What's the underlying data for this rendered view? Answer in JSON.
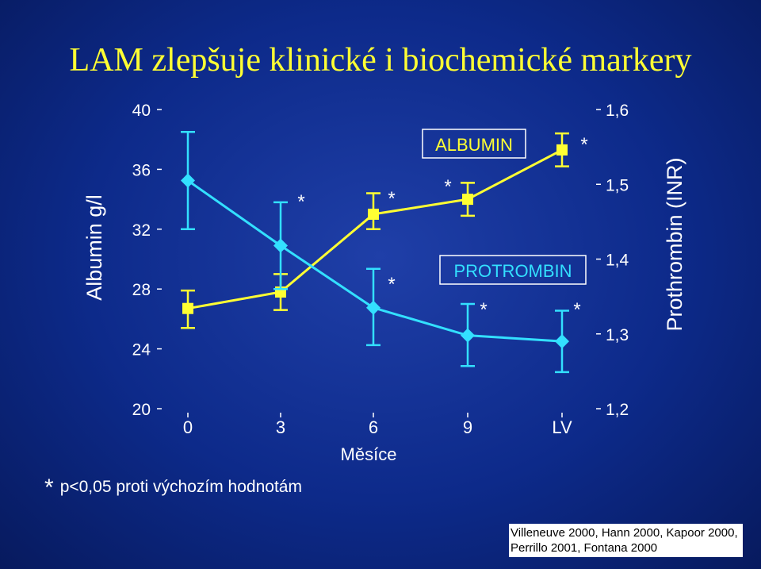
{
  "title": "LAM zlepšuje klinické i biochemické markery",
  "chart_data": {
    "type": "line",
    "categories": [
      "0",
      "3",
      "6",
      "9",
      "LV"
    ],
    "xlabel": "Měsíce",
    "ylabel_left": "Albumin g/l",
    "ylabel_right": "Prothrombin (INR)",
    "ylim_left": [
      20,
      40
    ],
    "ylim_right": [
      1.2,
      1.6
    ],
    "yticks_left": [
      "20",
      "24",
      "28",
      "32",
      "36",
      "40"
    ],
    "yticks_right": [
      "1,2",
      "1,3",
      "1,4",
      "1,5",
      "1,6"
    ],
    "series": [
      {
        "name": "ALBUMIN",
        "axis": "left",
        "color": "#ffff33",
        "marker": "square",
        "values": [
          26.7,
          27.8,
          33.0,
          34.0,
          37.3
        ],
        "err_low": [
          25.4,
          26.6,
          32.0,
          32.9,
          36.2
        ],
        "err_high": [
          27.9,
          29.0,
          34.4,
          35.1,
          38.4
        ],
        "significance": [
          "",
          "*",
          "*",
          "*",
          "*"
        ]
      },
      {
        "name": "PROTROMBIN",
        "axis": "right",
        "color": "#33e0ff",
        "marker": "diamond",
        "values": [
          1.505,
          1.418,
          1.335,
          1.298,
          1.29
        ],
        "err_low": [
          1.44,
          1.36,
          1.285,
          1.257,
          1.249
        ],
        "err_high": [
          1.57,
          1.476,
          1.387,
          1.34,
          1.331
        ],
        "significance": [
          "",
          "",
          "*",
          "*",
          "*"
        ]
      }
    ]
  },
  "footnote": {
    "star": "*",
    "text": "p<0,05 proti výchozím hodnotám"
  },
  "references": [
    "Villeneuve 2000, Hann 2000, Kapoor 2000,",
    "Perrillo 2001, Fontana 2000"
  ]
}
